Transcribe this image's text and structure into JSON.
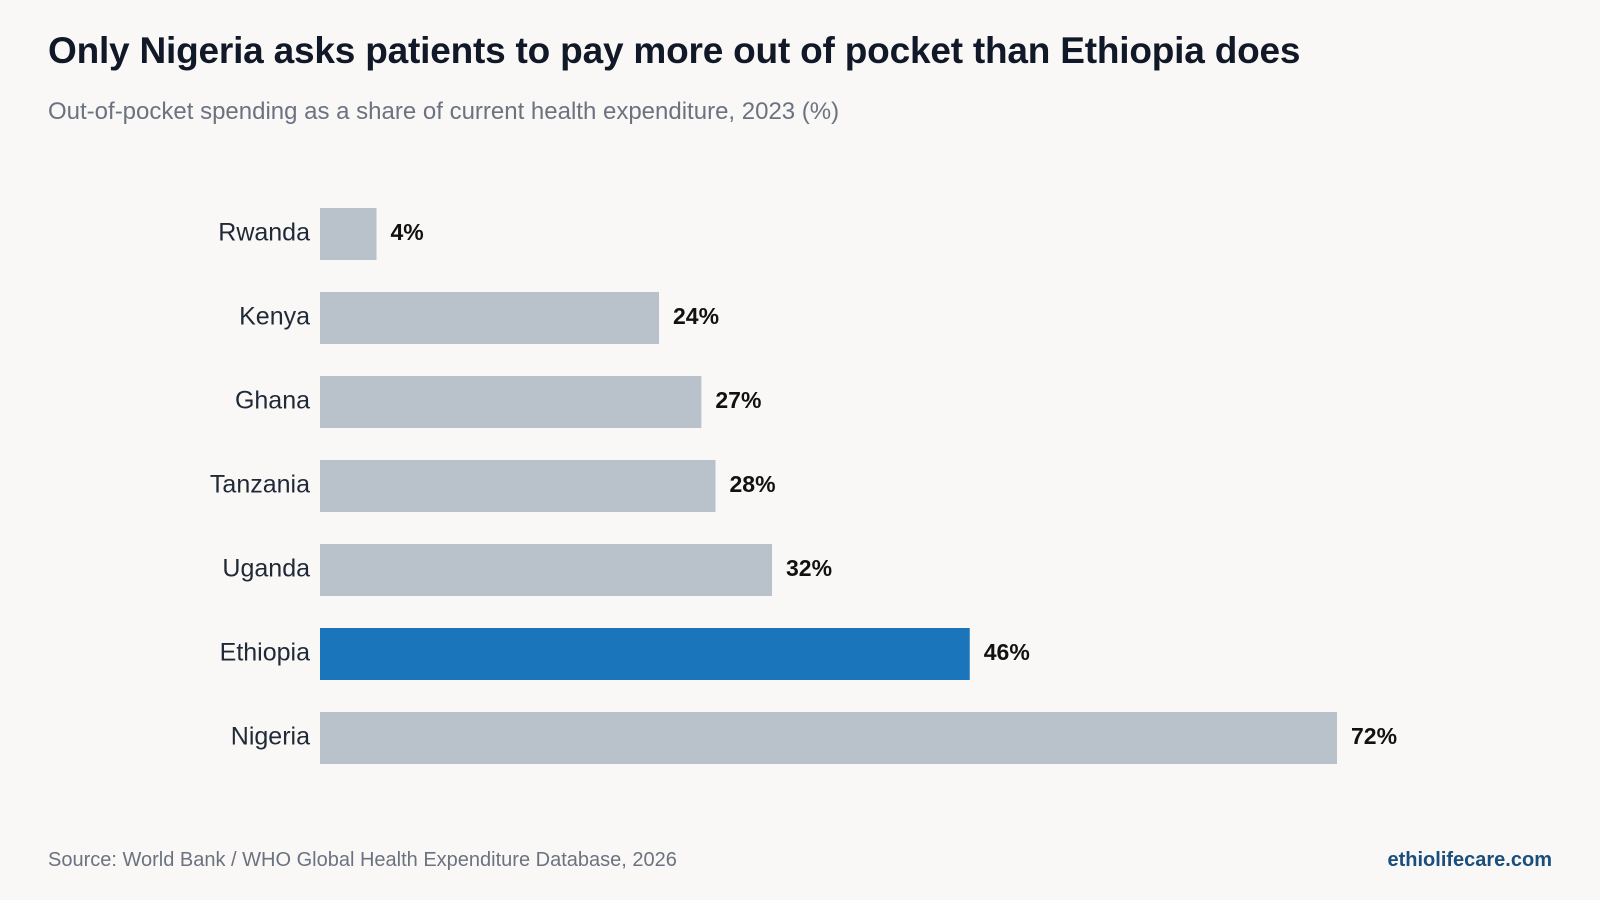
{
  "header": {
    "title": "Only Nigeria asks patients to pay more out of pocket than Ethiopia does",
    "subtitle": "Out-of-pocket spending as a share of current health expenditure, 2023 (%)"
  },
  "footer": {
    "source": "Source: World Bank / WHO Global Health Expenditure Database, 2026",
    "brand": "ethiolifecare.com"
  },
  "colors": {
    "default_bar": "#b9c2ca",
    "highlight_bar": "#1b75bb"
  },
  "chart_data": {
    "type": "bar",
    "orientation": "horizontal",
    "title": "Only Nigeria asks patients to pay more out of pocket than Ethiopia does",
    "subtitle": "Out-of-pocket spending as a share of current health expenditure, 2023 (%)",
    "categories": [
      "Rwanda",
      "Kenya",
      "Ghana",
      "Tanzania",
      "Uganda",
      "Ethiopia",
      "Nigeria"
    ],
    "values": [
      4,
      24,
      27,
      28,
      32,
      46,
      72
    ],
    "value_labels": [
      "4%",
      "24%",
      "27%",
      "28%",
      "32%",
      "46%",
      "72%"
    ],
    "highlight": "Ethiopia",
    "xlim": [
      0,
      72
    ],
    "grid": false,
    "legend": "none"
  }
}
